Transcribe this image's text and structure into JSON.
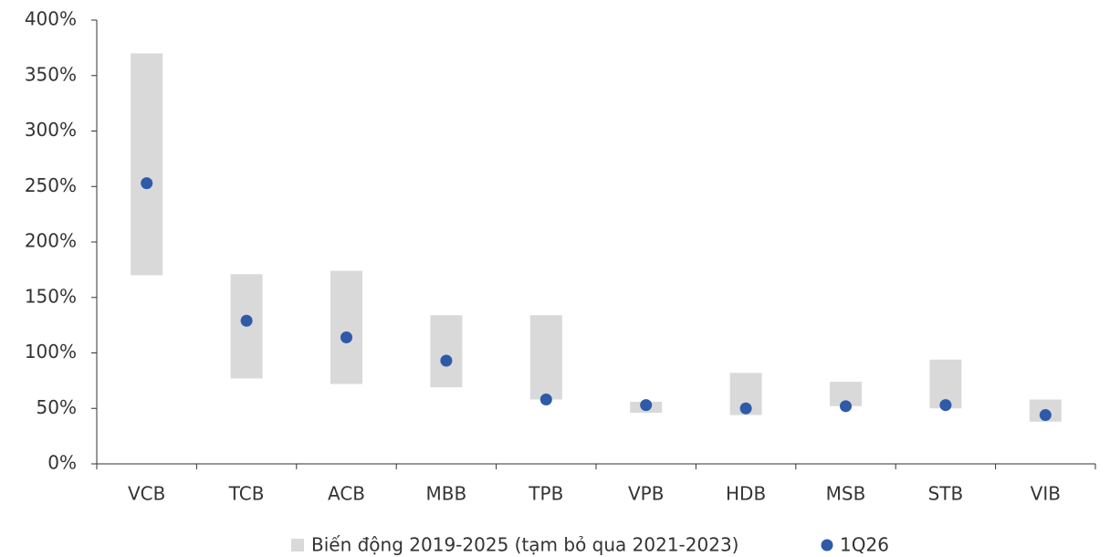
{
  "chart_data": {
    "type": "range-dot",
    "categories": [
      "VCB",
      "TCB",
      "ACB",
      "MBB",
      "TPB",
      "VPB",
      "HDB",
      "MSB",
      "STB",
      "VIB"
    ],
    "series": [
      {
        "name": "Biến động 2019-2025 (tạm bỏ qua 2021-2023)",
        "color": "#d9d9d9",
        "low": [
          170,
          77,
          72,
          69,
          58,
          46,
          44,
          52,
          50,
          38
        ],
        "high": [
          370,
          171,
          174,
          134,
          134,
          56,
          82,
          74,
          94,
          58
        ]
      },
      {
        "name": "1Q26",
        "color": "#2e5aa8",
        "values": [
          253,
          129,
          114,
          93,
          58,
          53,
          50,
          52,
          53,
          44
        ]
      }
    ],
    "ylim": [
      0,
      400
    ],
    "yticks": [
      {
        "value": 0,
        "label": "0%"
      },
      {
        "value": 50,
        "label": "50%"
      },
      {
        "value": 100,
        "label": "100%"
      },
      {
        "value": 150,
        "label": "150%"
      },
      {
        "value": 200,
        "label": "200%"
      },
      {
        "value": 250,
        "label": "250%"
      },
      {
        "value": 300,
        "label": "300%"
      },
      {
        "value": 350,
        "label": "350%"
      },
      {
        "value": 400,
        "label": "400%"
      }
    ],
    "legend": "bottom"
  }
}
